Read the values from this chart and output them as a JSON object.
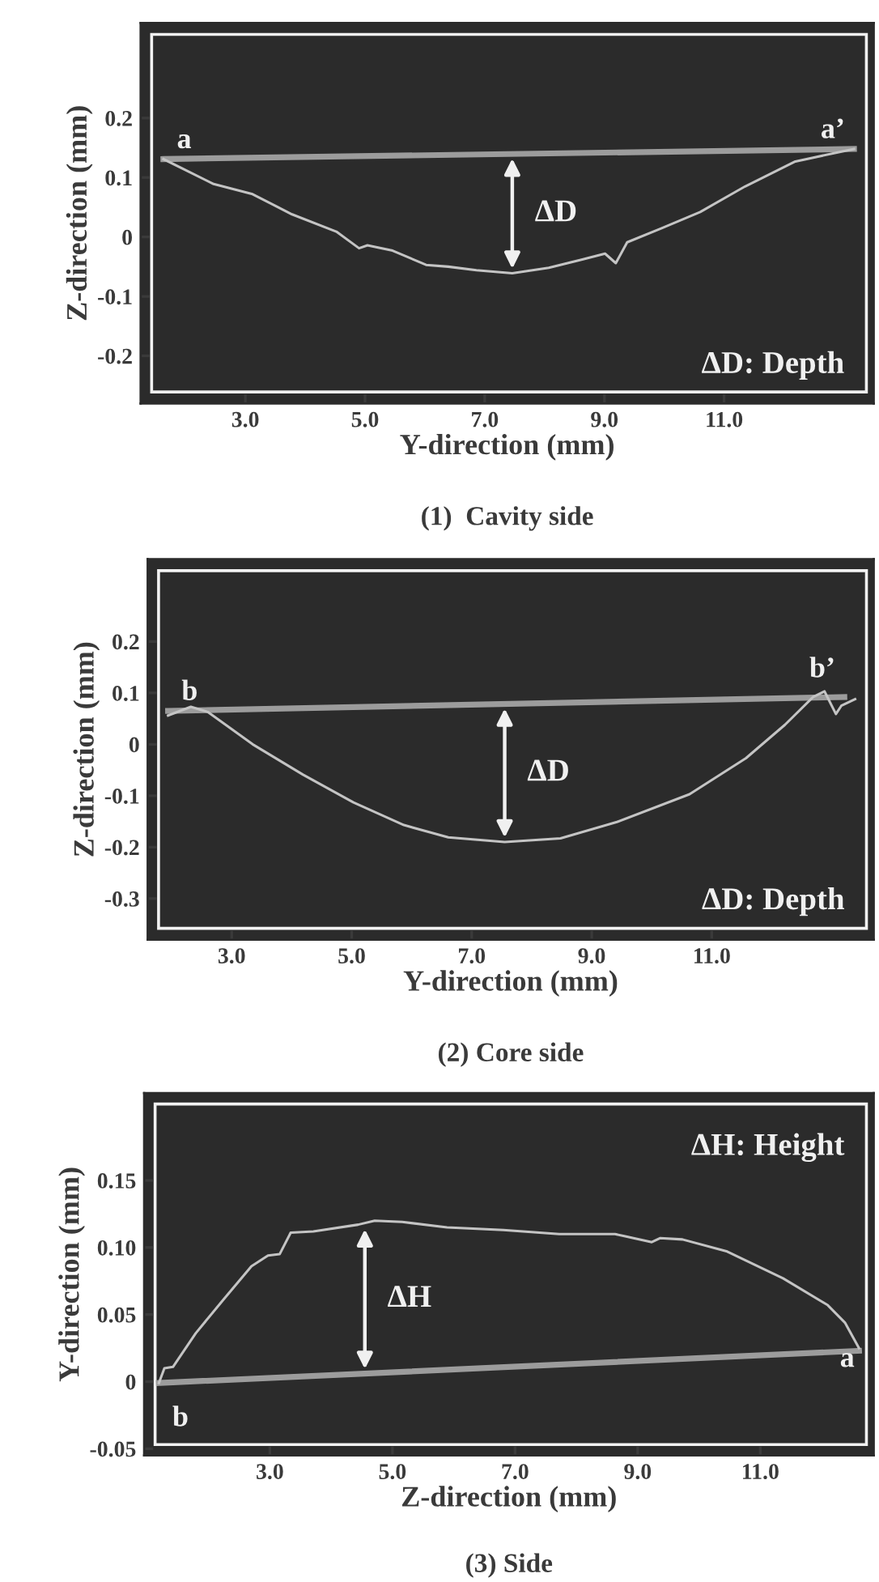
{
  "chart_data": [
    {
      "type": "line",
      "title": "(1)  Cavity side",
      "xlabel": "Y-direction (mm)",
      "ylabel": "Z-direction (mm)",
      "xlim": [
        1.25,
        13.5
      ],
      "ylim": [
        -0.28,
        0.36
      ],
      "xticks": [
        {
          "value": 3,
          "label": "3.0"
        },
        {
          "value": 5,
          "label": "5.0"
        },
        {
          "value": 7,
          "label": "7.0"
        },
        {
          "value": 9,
          "label": "9.0"
        },
        {
          "value": 11,
          "label": "11.0"
        }
      ],
      "yticks": [
        -0.2,
        -0.1,
        0,
        0.1,
        0.2
      ],
      "series": [
        {
          "color": "#9c9c9c",
          "x": [
            1.63,
            13.17
          ],
          "values": [
            0.131,
            0.148
          ]
        },
        {
          "color": "#c4c4c4",
          "x": [
            1.63,
            2.47,
            3.12,
            3.78,
            4.52,
            4.9,
            5.04,
            5.46,
            6.02,
            6.39,
            6.86,
            7.46,
            8.07,
            8.63,
            9.01,
            9.19,
            9.38,
            9.94,
            10.6,
            11.35,
            12.19,
            12.93,
            13.17
          ],
          "values": [
            0.131,
            0.089,
            0.072,
            0.038,
            0.009,
            -0.019,
            -0.014,
            -0.023,
            -0.047,
            -0.05,
            -0.056,
            -0.061,
            -0.052,
            -0.038,
            -0.028,
            -0.044,
            -0.009,
            0.014,
            0.042,
            0.085,
            0.127,
            0.143,
            0.148
          ]
        }
      ],
      "annotations": [
        {
          "text": "a",
          "x": 1.63,
          "y": 0.131
        },
        {
          "text": "a’",
          "x": 13.17,
          "y": 0.148
        },
        {
          "text": "ΔD",
          "x": 7.46,
          "y": -0.061
        },
        "ΔD: Depth"
      ]
    },
    {
      "type": "line",
      "title": "(2) Core side",
      "xlabel": "Y-direction (mm)",
      "ylabel": "Z-direction (mm)",
      "xlim": [
        1.6,
        13.7
      ],
      "ylim": [
        -0.38,
        0.36
      ],
      "xticks": [
        {
          "value": 3,
          "label": "3.0"
        },
        {
          "value": 5,
          "label": "5.0"
        },
        {
          "value": 7,
          "label": "7.0"
        },
        {
          "value": 9,
          "label": "9.0"
        },
        {
          "value": 11,
          "label": "11.0"
        }
      ],
      "yticks": [
        -0.3,
        -0.2,
        -0.1,
        0,
        0.1,
        0.2
      ],
      "series": [
        {
          "color": "#9c9c9c",
          "x": [
            1.94,
            13.21
          ],
          "values": [
            0.065,
            0.092
          ]
        },
        {
          "color": "#c4c4c4",
          "x": [
            1.94,
            2.32,
            2.6,
            3.35,
            4.19,
            5.03,
            5.87,
            6.61,
            7.55,
            8.48,
            9.42,
            10.63,
            11.57,
            12.22,
            12.69,
            12.88,
            13.07,
            13.16,
            13.39
          ],
          "values": [
            0.056,
            0.073,
            0.063,
            0.0,
            -0.059,
            -0.113,
            -0.157,
            -0.181,
            -0.19,
            -0.183,
            -0.151,
            -0.097,
            -0.027,
            0.038,
            0.092,
            0.103,
            0.059,
            0.075,
            0.088
          ]
        }
      ],
      "annotations": [
        {
          "text": "b",
          "x": 1.94,
          "y": 0.065
        },
        {
          "text": "b’",
          "x": 13.21,
          "y": 0.092
        },
        {
          "text": "ΔD",
          "x": 7.55,
          "y": -0.19
        },
        "ΔD: Depth"
      ]
    },
    {
      "type": "line",
      "title": "(3) Side",
      "xlabel": "Z-direction (mm)",
      "ylabel": "Y-direction (mm)",
      "xlim": [
        0.95,
        12.85
      ],
      "ylim": [
        -0.055,
        0.215
      ],
      "xticks": [
        {
          "value": 3,
          "label": "3.0"
        },
        {
          "value": 5,
          "label": "5.0"
        },
        {
          "value": 7,
          "label": "7.0"
        },
        {
          "value": 9,
          "label": "9.0"
        },
        {
          "value": 11,
          "label": "11.0"
        }
      ],
      "yticks": [
        {
          "value": -0.05,
          "label": "-0.05"
        },
        0,
        0.05,
        {
          "value": 0.1,
          "label": "0.10"
        },
        0.15
      ],
      "series": [
        {
          "color": "#9c9c9c",
          "x": [
            1.19,
            12.61
          ],
          "values": [
            -0.001,
            0.023
          ]
        },
        {
          "color": "#c4c4c4",
          "x": [
            1.19,
            1.28,
            1.42,
            1.79,
            2.24,
            2.7,
            2.97,
            3.16,
            3.34,
            3.71,
            4.44,
            4.71,
            5.16,
            5.89,
            6.81,
            7.72,
            8.63,
            9.23,
            9.37,
            9.73,
            10.46,
            11.37,
            12.1,
            12.38,
            12.61
          ],
          "values": [
            -0.001,
            0.01,
            0.011,
            0.036,
            0.061,
            0.086,
            0.094,
            0.095,
            0.111,
            0.112,
            0.117,
            0.12,
            0.119,
            0.115,
            0.113,
            0.11,
            0.11,
            0.104,
            0.107,
            0.106,
            0.097,
            0.077,
            0.057,
            0.044,
            0.025
          ]
        }
      ],
      "annotations": [
        {
          "text": "b",
          "x": 1.19,
          "y": -0.001
        },
        {
          "text": "a",
          "x": 12.61,
          "y": 0.023
        },
        {
          "text": "ΔH",
          "x": 4.55,
          "y": 0.117
        },
        "ΔH: Height"
      ]
    }
  ]
}
